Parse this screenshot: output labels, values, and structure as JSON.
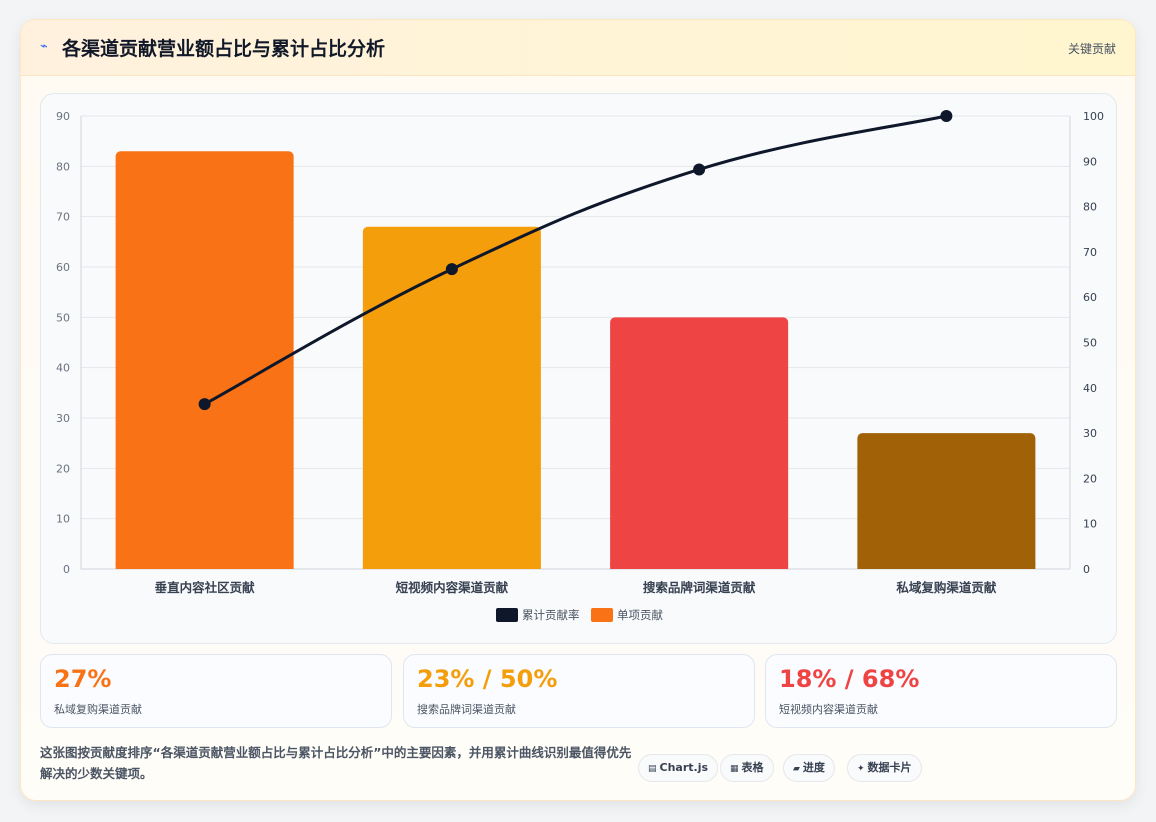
{
  "header": {
    "title": "各渠道贡献营业额占比与累计占比分析",
    "tag": "关键贡献",
    "icon": "lightning-icon"
  },
  "chart_data": {
    "type": "bar",
    "categories": [
      "垂直内容社区贡献",
      "短视频内容渠道贡献",
      "搜索品牌词渠道贡献",
      "私域复购渠道贡献"
    ],
    "series": [
      {
        "name": "单项贡献",
        "type": "bar",
        "axis": "left",
        "values": [
          83,
          68,
          50,
          27
        ],
        "colors": [
          "#f97316",
          "#f59e0b",
          "#ef4444",
          "#a16207"
        ]
      },
      {
        "name": "累计贡献率",
        "type": "line",
        "axis": "right",
        "values": [
          36.4,
          66.2,
          88.2,
          100
        ],
        "color": "#0f172a"
      }
    ],
    "y_left": {
      "min": 0,
      "max": 90,
      "ticks": [
        0,
        10,
        20,
        30,
        40,
        50,
        60,
        70,
        80,
        90
      ]
    },
    "y_right": {
      "min": 0,
      "max": 100,
      "ticks": [
        0,
        10,
        20,
        30,
        40,
        50,
        60,
        70,
        80,
        90,
        100
      ]
    },
    "legend": [
      {
        "label": "累计贡献率",
        "color": "#0f172a"
      },
      {
        "label": "单项贡献",
        "color": "#f97316"
      }
    ],
    "legend_position": "bottom",
    "grid": true
  },
  "stats": [
    {
      "value": "27%",
      "label": "私域复购渠道贡献",
      "color": "#f97316"
    },
    {
      "value": "23% / 50%",
      "label": "搜索品牌词渠道贡献",
      "color": "#f59e0b"
    },
    {
      "value": "18% / 68%",
      "label": "短视频内容渠道贡献",
      "color": "#ef4444"
    }
  ],
  "footnote": "这张图按贡献度排序“各渠道贡献营业额占比与累计占比分析”中的主要因素，并用累计曲线识别最值得优先解决的少数关键项。",
  "tools": [
    {
      "icon": "▤",
      "label": "Chart.js",
      "icon_name": "chart-icon"
    },
    {
      "icon": "▦",
      "label": "表格",
      "icon_name": "table-icon"
    },
    {
      "icon": "▰",
      "label": "进度",
      "icon_name": "progress-icon"
    },
    {
      "icon": "✦",
      "label": "数据卡片",
      "icon_name": "card-icon"
    }
  ]
}
